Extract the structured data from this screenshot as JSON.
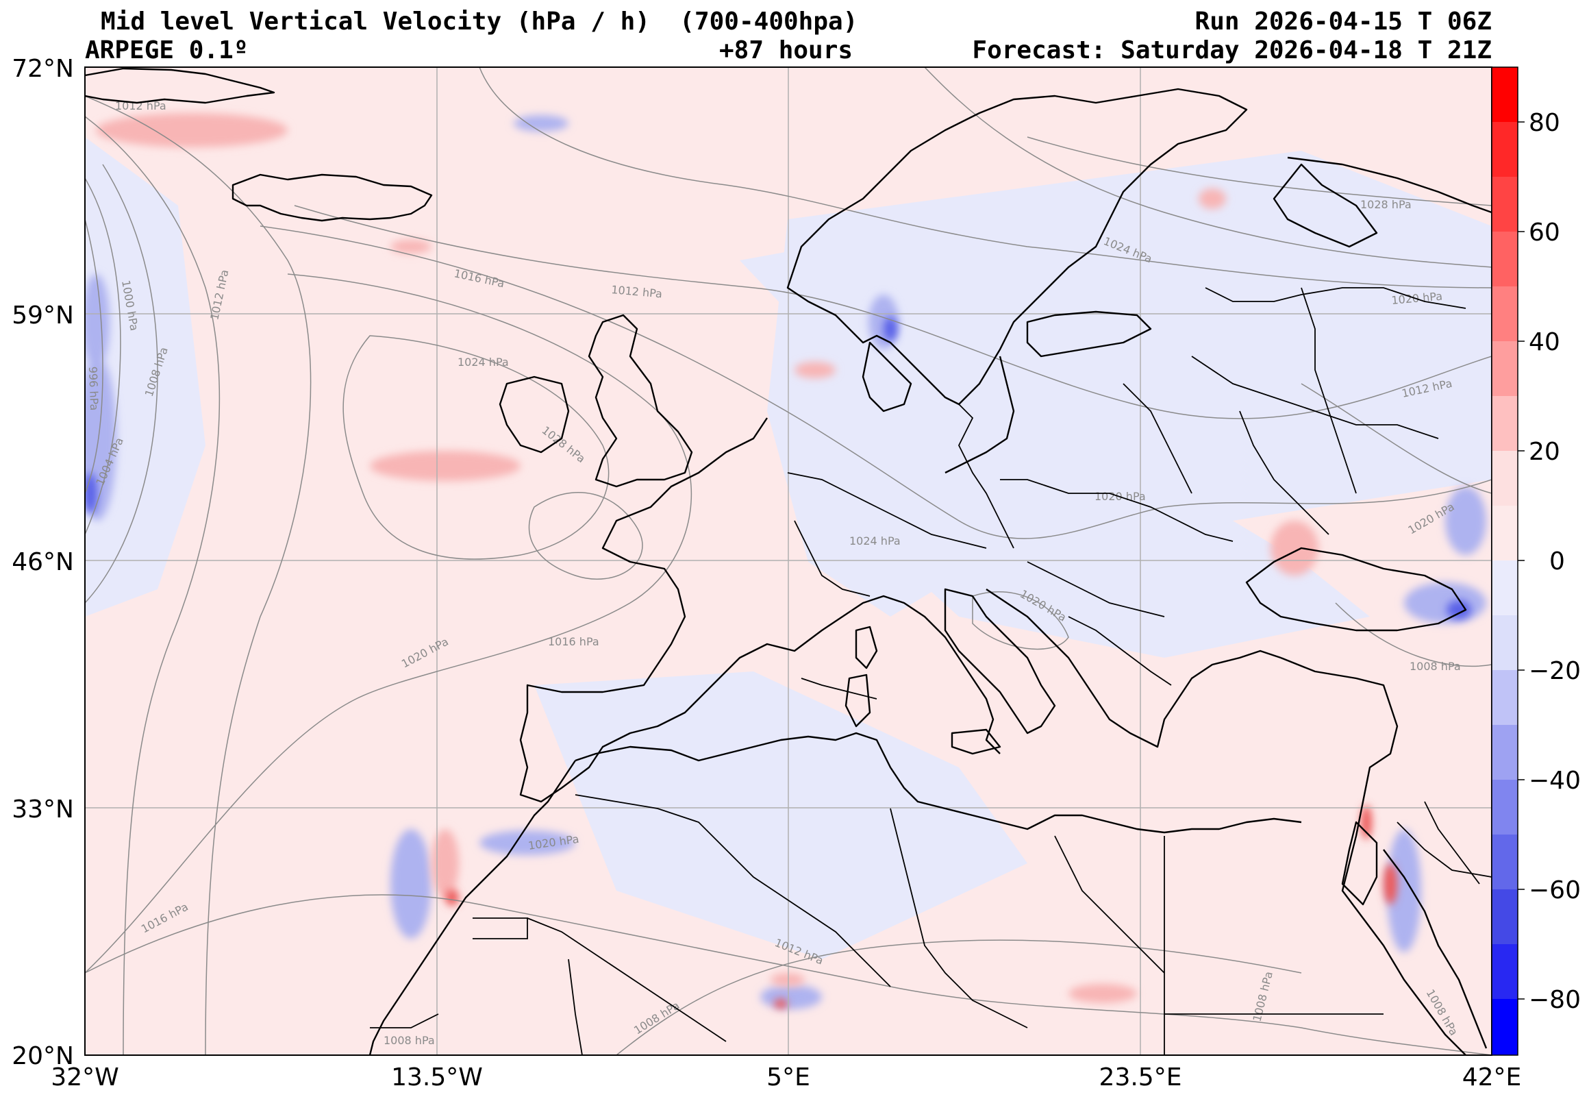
{
  "header": {
    "title": "Mid level Vertical Velocity (hPa / h)  (700-400hpa)",
    "model": "ARPEGE 0.1º",
    "lead": "+87 hours",
    "run": "Run 2026-04-15 T 06Z",
    "forecast": "Forecast: Saturday 2026-04-18 T 21Z"
  },
  "map": {
    "lat_labels": [
      "72°N",
      "59°N",
      "46°N",
      "33°N",
      "20°N"
    ],
    "lon_labels": [
      "32°W",
      "13.5°W",
      "5°E",
      "23.5°E",
      "42°E"
    ],
    "isobar_labels": [
      "1012 hPa",
      "1000 hPa",
      "1012 hPa",
      "1016 hPa",
      "1012 hPa",
      "1024 hPa",
      "1028 hPa",
      "1008 hPa",
      "996 hPa",
      "1004 hPa",
      "1020 hPa",
      "1016 hPa",
      "1020 hPa",
      "1016 hPa",
      "1012 hPa",
      "1008 hPa",
      "1008 hPa",
      "1024 hPa",
      "1028 hPa",
      "1020 hPa",
      "1012 hPa",
      "1020 hPa",
      "1020 hPa",
      "1008 hPa",
      "1008 hPa",
      "1008 hPa",
      "1024 hPa",
      "1020 hPa"
    ],
    "colors": {
      "positive": "#ff0000",
      "negative": "#0000ff",
      "neutral": "#ffffff",
      "coast": "#000000",
      "isobar": "#8a8a8a",
      "grid": "#b0b0b0"
    }
  },
  "colorbar": {
    "ticks": [
      "80",
      "60",
      "40",
      "20",
      "0",
      "−20",
      "−40",
      "−60",
      "−80"
    ],
    "range": [
      -90,
      90
    ]
  }
}
